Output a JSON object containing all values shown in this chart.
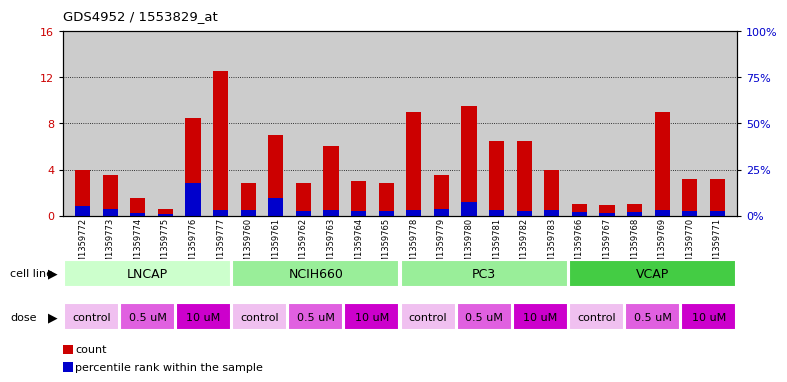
{
  "title": "GDS4952 / 1553829_at",
  "samples": [
    "GSM1359772",
    "GSM1359773",
    "GSM1359774",
    "GSM1359775",
    "GSM1359776",
    "GSM1359777",
    "GSM1359760",
    "GSM1359761",
    "GSM1359762",
    "GSM1359763",
    "GSM1359764",
    "GSM1359765",
    "GSM1359778",
    "GSM1359779",
    "GSM1359780",
    "GSM1359781",
    "GSM1359782",
    "GSM1359783",
    "GSM1359766",
    "GSM1359767",
    "GSM1359768",
    "GSM1359769",
    "GSM1359770",
    "GSM1359771"
  ],
  "red_values": [
    4.0,
    3.5,
    1.5,
    0.6,
    8.5,
    12.5,
    2.8,
    7.0,
    2.8,
    6.0,
    3.0,
    2.8,
    9.0,
    3.5,
    9.5,
    6.5,
    6.5,
    4.0,
    1.0,
    0.9,
    1.0,
    9.0,
    3.2,
    3.2
  ],
  "blue_values": [
    0.8,
    0.6,
    0.2,
    0.15,
    2.8,
    0.5,
    0.5,
    1.5,
    0.4,
    0.5,
    0.4,
    0.4,
    0.5,
    0.6,
    1.2,
    0.5,
    0.4,
    0.5,
    0.3,
    0.2,
    0.3,
    0.5,
    0.4,
    0.4
  ],
  "red_color": "#cc0000",
  "blue_color": "#0000cc",
  "ylim_left": [
    0,
    16
  ],
  "ylim_right": [
    0,
    100
  ],
  "yticks_left": [
    0,
    4,
    8,
    12,
    16
  ],
  "ytick_labels_right": [
    "0%",
    "25%",
    "50%",
    "75%",
    "100%"
  ],
  "cell_lines": [
    {
      "label": "LNCAP",
      "start": 0,
      "end": 6,
      "color": "#ccffcc"
    },
    {
      "label": "NCIH660",
      "start": 6,
      "end": 12,
      "color": "#99ee99"
    },
    {
      "label": "PC3",
      "start": 12,
      "end": 18,
      "color": "#99ee99"
    },
    {
      "label": "VCAP",
      "start": 18,
      "end": 24,
      "color": "#44cc44"
    }
  ],
  "doses": [
    {
      "label": "control",
      "start": 0,
      "end": 2,
      "color": "#f0c0f0"
    },
    {
      "label": "0.5 uM",
      "start": 2,
      "end": 4,
      "color": "#e060e0"
    },
    {
      "label": "10 uM",
      "start": 4,
      "end": 6,
      "color": "#cc00cc"
    },
    {
      "label": "control",
      "start": 6,
      "end": 8,
      "color": "#f0c0f0"
    },
    {
      "label": "0.5 uM",
      "start": 8,
      "end": 10,
      "color": "#e060e0"
    },
    {
      "label": "10 uM",
      "start": 10,
      "end": 12,
      "color": "#cc00cc"
    },
    {
      "label": "control",
      "start": 12,
      "end": 14,
      "color": "#f0c0f0"
    },
    {
      "label": "0.5 uM",
      "start": 14,
      "end": 16,
      "color": "#e060e0"
    },
    {
      "label": "10 uM",
      "start": 16,
      "end": 18,
      "color": "#cc00cc"
    },
    {
      "label": "control",
      "start": 18,
      "end": 20,
      "color": "#f0c0f0"
    },
    {
      "label": "0.5 uM",
      "start": 20,
      "end": 22,
      "color": "#e060e0"
    },
    {
      "label": "10 uM",
      "start": 22,
      "end": 24,
      "color": "#cc00cc"
    }
  ],
  "bar_width": 0.55,
  "background_color": "#ffffff",
  "plot_bg_color": "#cccccc",
  "grid_color": "#000000",
  "legend_items": [
    {
      "label": "count",
      "color": "#cc0000"
    },
    {
      "label": "percentile rank within the sample",
      "color": "#0000cc"
    }
  ]
}
